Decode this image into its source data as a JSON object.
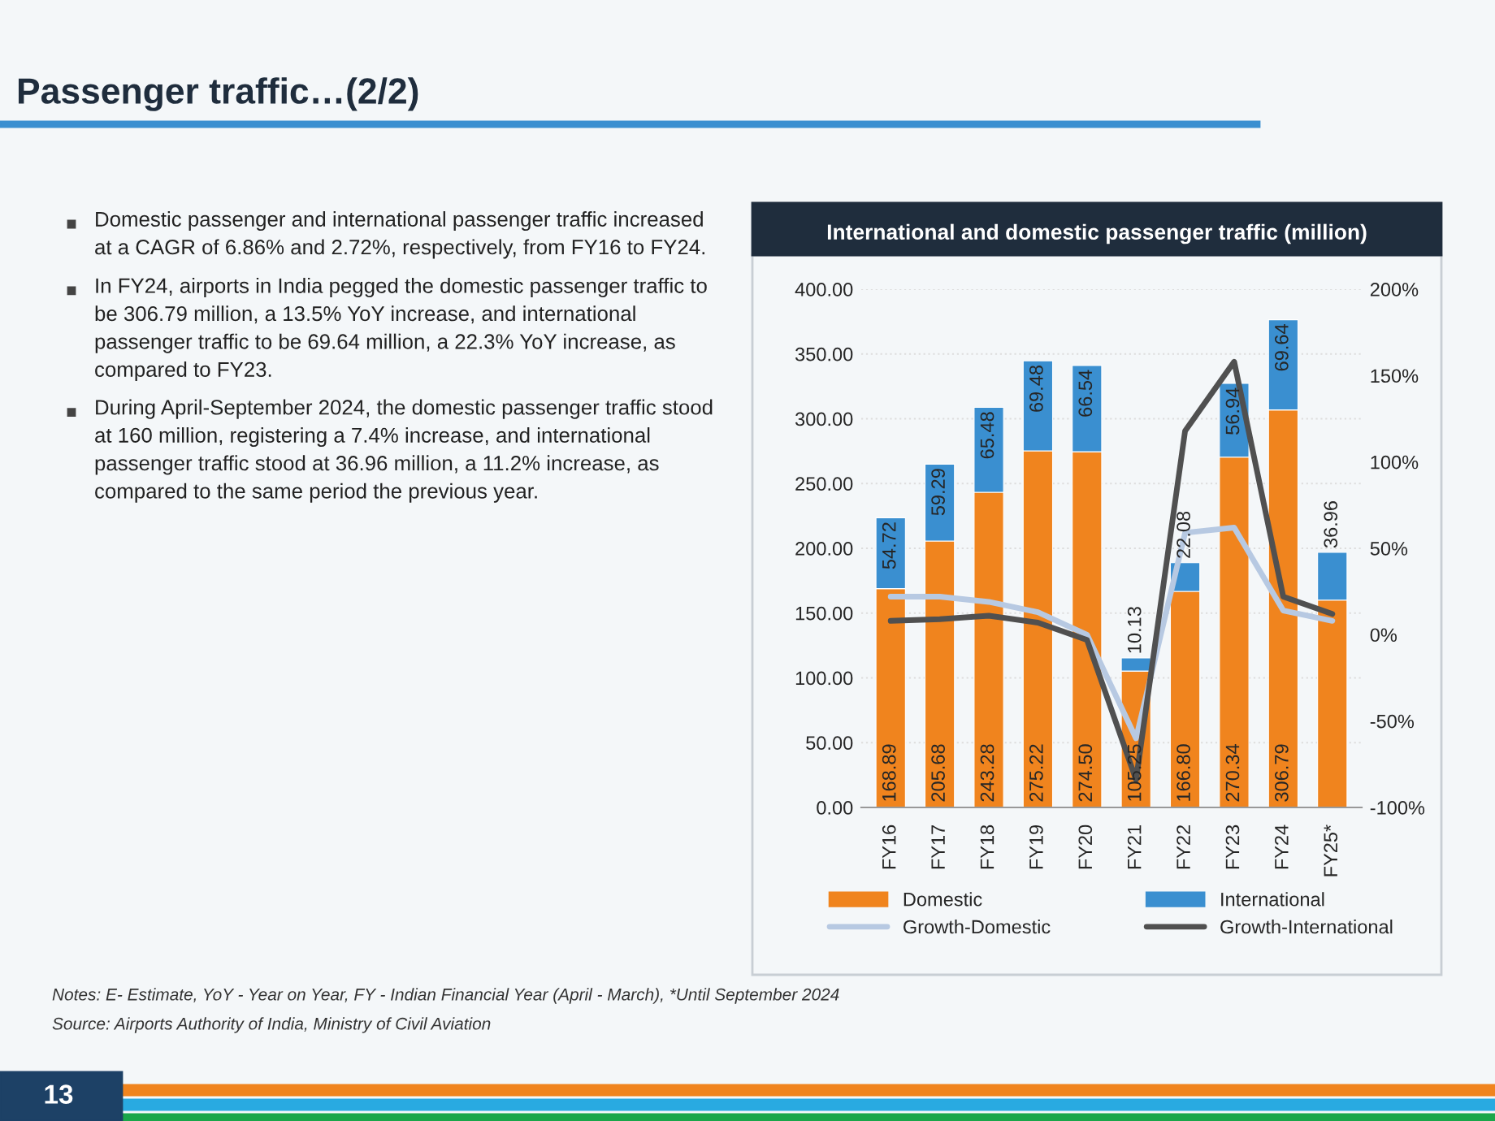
{
  "chart_data": {
    "type": "bar",
    "title": "Passenger traffic…(2/2)",
    "subtitle": "International and domestic passenger traffic (million)",
    "categories": [
      "FY16",
      "FY17",
      "FY18",
      "FY19",
      "FY20",
      "FY21",
      "FY22",
      "FY23",
      "FY24",
      "FY25*"
    ],
    "stacked": true,
    "series": [
      {
        "name": "Domestic",
        "color": "#f0841e",
        "values": [
          168.89,
          205.68,
          243.28,
          275.22,
          274.5,
          105.25,
          166.8,
          270.34,
          306.79,
          160
        ],
        "value_labels": [
          "168.89",
          "205.68",
          "243.28",
          "275.22",
          "274.50",
          "105.25",
          "166.80",
          "270.34",
          "306.79",
          null
        ]
      },
      {
        "name": "International",
        "color": "#3a8fd0",
        "values": [
          54.72,
          59.29,
          65.48,
          69.48,
          66.54,
          10.13,
          22.08,
          56.94,
          69.64,
          36.96
        ],
        "value_labels": [
          "54.72",
          "59.29",
          "65.48",
          "69.48",
          "66.54",
          "10.13",
          "22.08",
          "56.94",
          "69.64",
          "36.96"
        ]
      },
      {
        "name": "Growth-Domestic",
        "type": "line",
        "axis": "y2",
        "color": "#b7c9e2",
        "values": [
          22,
          22,
          19,
          13,
          0,
          -60,
          59,
          62,
          14,
          8
        ]
      },
      {
        "name": "Growth-International",
        "type": "line",
        "axis": "y2",
        "color": "#505050",
        "values": [
          8,
          9,
          11,
          7,
          -3,
          -84,
          118,
          158,
          22,
          12
        ]
      }
    ],
    "ylim": [
      0,
      400
    ],
    "yticks": [
      {
        "value": 0,
        "label": "0.00"
      },
      {
        "value": 50,
        "label": "50.00"
      },
      {
        "value": 100,
        "label": "100.00"
      },
      {
        "value": 150,
        "label": "150.00"
      },
      {
        "value": 200,
        "label": "200.00"
      },
      {
        "value": 250,
        "label": "250.00"
      },
      {
        "value": 300,
        "label": "300.00"
      },
      {
        "value": 350,
        "label": "350.00"
      },
      {
        "value": 400,
        "label": "400.00"
      }
    ],
    "y2lim": [
      -100,
      200
    ],
    "y2ticks": [
      {
        "value": -100,
        "label": "-100%"
      },
      {
        "value": -50,
        "label": "-50%"
      },
      {
        "value": 0,
        "label": "0%"
      },
      {
        "value": 50,
        "label": "50%"
      },
      {
        "value": 100,
        "label": "100%"
      },
      {
        "value": 150,
        "label": "150%"
      },
      {
        "value": 200,
        "label": "200%"
      }
    ],
    "grid": "y",
    "legend": "bottom",
    "marker": "none",
    "line_style": "solid",
    "annotations": [
      "Domestic passenger and international passenger traffic increased at a CAGR of 6.86% and 2.72%, respectively, from FY16 to FY24.",
      "In FY24, airports in India pegged the domestic passenger traffic to be 306.79 million, a 13.5% YoY increase, and international passenger traffic to be 69.64 million, a 22.3% YoY increase, as compared to FY23.",
      "During April-September 2024, the domestic passenger traffic stood at 160 million, registering a 7.4% increase, and international passenger traffic stood at 36.96 million, a 11.2% increase, as compared to the same period the previous year.",
      "Notes: E- Estimate, YoY - Year on Year, FY - Indian Financial Year (April - March), *Until September 2024",
      "Source: Airports Authority of India, Ministry of Civil Aviation",
      "13"
    ]
  }
}
